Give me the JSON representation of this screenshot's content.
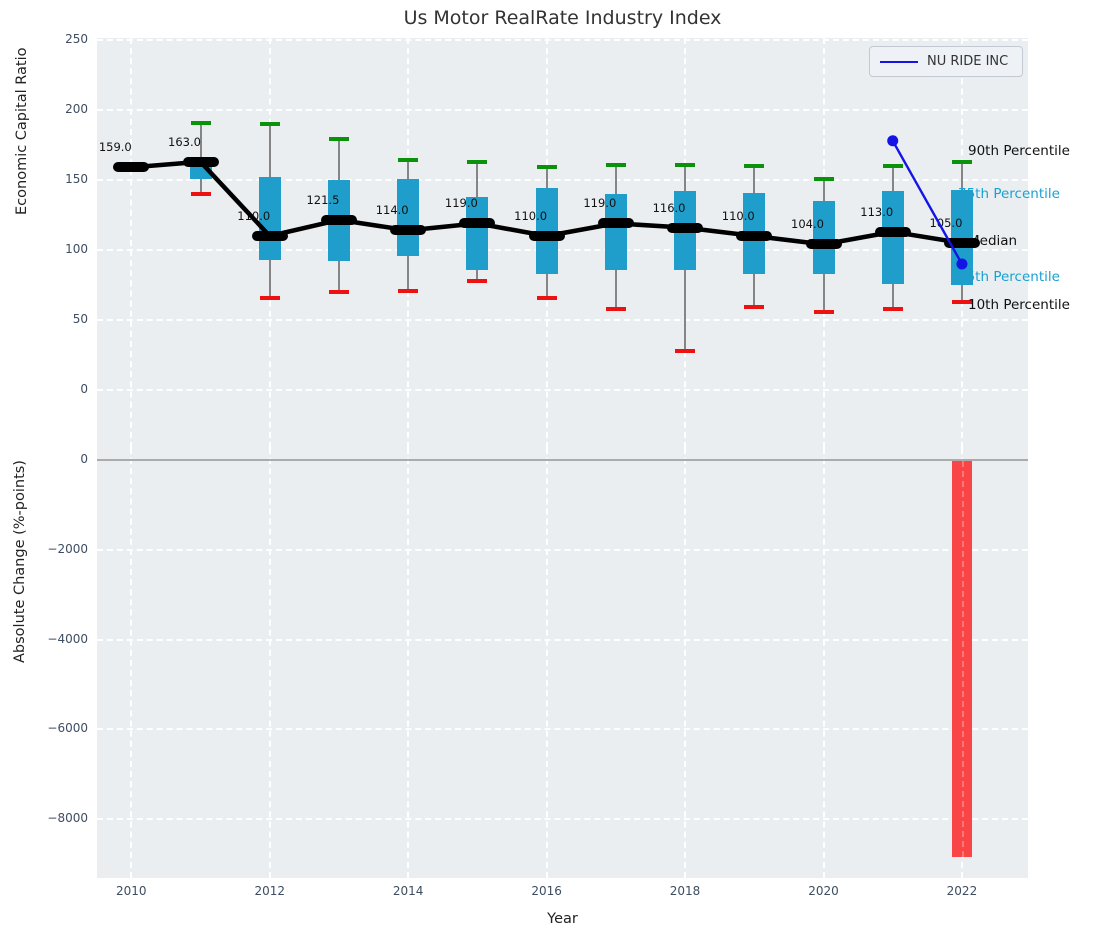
{
  "title": "Us Motor RealRate Industry Index",
  "legend": {
    "label": "NU RIDE INC"
  },
  "colors": {
    "plot_bg": "#eaeef1",
    "box_fill": "#1f9ecb",
    "cyan_label": "#18a2d2",
    "whisker_top_cap": "#0a930a",
    "whisker_bottom_cap": "#ee1111",
    "bar_red": "#f94545",
    "company_line": "#1414e6",
    "tick_label": "#3e4d61"
  },
  "chart_data": [
    {
      "type": "box",
      "ylabel": "Economic Capital Ratio",
      "ylim": [
        -41,
        251
      ],
      "yticks": [
        0,
        50,
        100,
        150,
        200,
        250
      ],
      "yticklabels": [
        "0",
        "50",
        "100",
        "150",
        "200",
        "250"
      ],
      "xticks": [
        2010,
        2012,
        2014,
        2016,
        2018,
        2020,
        2022
      ],
      "xticklabels": [
        "2010",
        "2012",
        "2014",
        "2016",
        "2018",
        "2020",
        "2022"
      ],
      "grid": true,
      "legend_position": "upper right",
      "boxes": [
        {
          "year": 2010,
          "p10": 158,
          "q1": 158.5,
          "median": 159,
          "q3": 159.5,
          "p90": 161,
          "label": "159.0"
        },
        {
          "year": 2011,
          "p10": 140,
          "q1": 151,
          "median": 163,
          "q3": 162,
          "p90": 191,
          "label": "163.0"
        },
        {
          "year": 2012,
          "p10": 66,
          "q1": 93,
          "median": 110,
          "q3": 152,
          "p90": 190,
          "label": "110.0"
        },
        {
          "year": 2013,
          "p10": 70,
          "q1": 92,
          "median": 121.5,
          "q3": 150,
          "p90": 179,
          "label": "121.5"
        },
        {
          "year": 2014,
          "p10": 71,
          "q1": 96,
          "median": 114,
          "q3": 151,
          "p90": 164,
          "label": "114.0"
        },
        {
          "year": 2015,
          "p10": 78,
          "q1": 86,
          "median": 119,
          "q3": 138,
          "p90": 163,
          "label": "119.0"
        },
        {
          "year": 2016,
          "p10": 66,
          "q1": 83,
          "median": 110,
          "q3": 144,
          "p90": 159,
          "label": "110.0"
        },
        {
          "year": 2017,
          "p10": 58,
          "q1": 86,
          "median": 119,
          "q3": 140,
          "p90": 161,
          "label": "119.0"
        },
        {
          "year": 2018,
          "p10": 28,
          "q1": 86,
          "median": 116,
          "q3": 142,
          "p90": 161,
          "label": "116.0"
        },
        {
          "year": 2019,
          "p10": 59,
          "q1": 83,
          "median": 110,
          "q3": 141,
          "p90": 160,
          "label": "110.0"
        },
        {
          "year": 2020,
          "p10": 56,
          "q1": 83,
          "median": 104,
          "q3": 135,
          "p90": 151,
          "label": "104.0"
        },
        {
          "year": 2021,
          "p10": 58,
          "q1": 76,
          "median": 113,
          "q3": 142,
          "p90": 160,
          "label": "113.0"
        },
        {
          "year": 2022,
          "p10": 63,
          "q1": 75,
          "median": 105,
          "q3": 143,
          "p90": 163,
          "label": "105.0"
        }
      ],
      "series": [
        {
          "name": "NU RIDE INC",
          "points": [
            {
              "x": 2021,
              "y": 178
            },
            {
              "x": 2022,
              "y": 90
            }
          ]
        }
      ],
      "annotations": [
        {
          "text": "90th Percentile",
          "value": 170,
          "style": "dark"
        },
        {
          "text": "75th Percentile",
          "value": 139,
          "style": "accent"
        },
        {
          "text": "Median",
          "value": 106,
          "style": "dark"
        },
        {
          "text": "25th Percentile",
          "value": 80,
          "style": "accent"
        },
        {
          "text": "10th Percentile",
          "value": 60,
          "style": "dark"
        }
      ]
    },
    {
      "type": "bar",
      "ylabel": "Absolute Change (%-points)",
      "xlabel": "Year",
      "ylim": [
        -9300,
        270
      ],
      "yticks": [
        0,
        -2000,
        -4000,
        -6000,
        -8000
      ],
      "yticklabels": [
        "0",
        "−2000",
        "−4000",
        "−6000",
        "−8000"
      ],
      "grid": true,
      "zero_line": true,
      "bars": [
        {
          "year": 2022,
          "value": -8850
        }
      ]
    }
  ]
}
